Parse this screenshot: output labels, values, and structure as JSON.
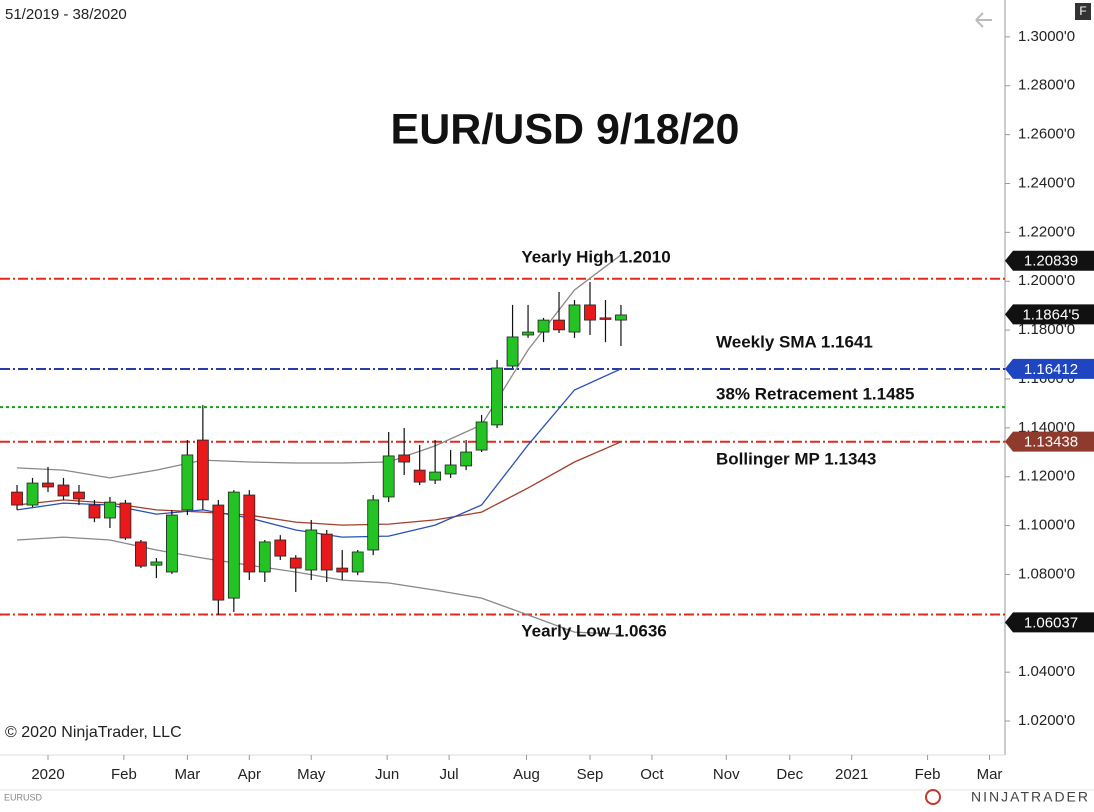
{
  "chart_data": {
    "type": "candlestick",
    "title": "EUR/USD 9/18/20",
    "subtitle": "51/2019 - 38/2020",
    "corner_tag": "F",
    "copyright": "© 2020 NinjaTrader, LLC",
    "symbol": "EURUSD",
    "logo": "NINJATRADER",
    "up_color": "#22c322",
    "down_color": "#e8191b",
    "x": [
      0,
      1,
      2,
      3,
      4,
      5,
      6,
      7,
      8,
      9,
      10,
      11,
      12,
      13,
      14,
      15,
      16,
      17,
      18,
      19,
      20,
      21,
      22,
      23,
      24,
      25,
      26,
      27,
      28,
      29,
      30,
      31,
      32,
      33,
      34,
      35,
      36,
      37,
      38,
      39
    ],
    "open": [
      1.1137,
      1.1084,
      1.1174,
      1.1166,
      1.1137,
      1.1084,
      1.1031,
      1.1092,
      1.0933,
      1.0838,
      1.081,
      1.1064,
      1.135,
      1.1084,
      1.0703,
      1.1125,
      1.081,
      1.0941,
      1.0867,
      1.0818,
      1.0965,
      1.0826,
      1.081,
      1.09,
      1.1117,
      1.1289,
      1.1227,
      1.1186,
      1.1211,
      1.1244,
      1.1309,
      1.1412,
      1.1653,
      1.178,
      1.1792,
      1.1841,
      1.1792,
      1.1903,
      1.185,
      1.1841
    ],
    "high": [
      1.1166,
      1.1195,
      1.124,
      1.1195,
      1.1166,
      1.1105,
      1.1117,
      1.1105,
      1.0941,
      1.0867,
      1.1064,
      1.135,
      1.1493,
      1.1105,
      1.1145,
      1.1145,
      1.0941,
      1.0961,
      1.0879,
      1.1023,
      1.0982,
      1.09,
      1.09,
      1.1125,
      1.1383,
      1.1399,
      1.133,
      1.135,
      1.1309,
      1.135,
      1.1453,
      1.1678,
      1.1903,
      1.1903,
      1.185,
      1.1956,
      1.1923,
      1.1997,
      1.1923,
      1.1903
    ],
    "low": [
      1.1064,
      1.1076,
      1.1137,
      1.1105,
      1.1084,
      1.1014,
      1.099,
      1.0941,
      1.0826,
      1.0785,
      1.0802,
      1.1043,
      1.1064,
      1.0634,
      1.0646,
      1.0777,
      1.0769,
      1.0859,
      1.0728,
      1.0777,
      1.0769,
      1.0777,
      1.0797,
      1.0879,
      1.1096,
      1.1207,
      1.1166,
      1.117,
      1.1195,
      1.1227,
      1.1301,
      1.1399,
      1.1645,
      1.1768,
      1.1751,
      1.1788,
      1.1768,
      1.178,
      1.1751,
      1.1735
    ],
    "close": [
      1.1084,
      1.1174,
      1.1158,
      1.1121,
      1.1109,
      1.1031,
      1.1096,
      1.0949,
      1.0834,
      1.0851,
      1.1043,
      1.1289,
      1.1105,
      1.0695,
      1.1137,
      1.081,
      1.0933,
      1.0875,
      1.0826,
      1.0982,
      1.0818,
      1.081,
      1.0892,
      1.1105,
      1.1285,
      1.126,
      1.1178,
      1.1219,
      1.1248,
      1.1301,
      1.1424,
      1.1645,
      1.1772,
      1.1792,
      1.1841,
      1.1801,
      1.1903,
      1.1841,
      1.1846,
      1.1862
    ],
    "overlays": [
      {
        "color": "#888888",
        "x": [
          0,
          3,
          6,
          9,
          12,
          15,
          18,
          21,
          24,
          27,
          30,
          33,
          36,
          39
        ],
        "values": [
          1.1236,
          1.1227,
          1.1195,
          1.1227,
          1.1268,
          1.126,
          1.1256,
          1.1256,
          1.126,
          1.1326,
          1.1412,
          1.1719,
          1.1964,
          1.2108
        ]
      },
      {
        "color": "#888888",
        "x": [
          0,
          3,
          6,
          9,
          12,
          15,
          18,
          21,
          24,
          27,
          30,
          33,
          36,
          39
        ],
        "values": [
          1.0941,
          1.0953,
          1.0941,
          1.09,
          1.0867,
          1.0838,
          1.081,
          1.0777,
          1.0765,
          1.0736,
          1.0703,
          1.0634,
          1.0564,
          1.0556
        ]
      },
      {
        "color": "#a0402a",
        "x": [
          0,
          3,
          6,
          9,
          12,
          15,
          18,
          21,
          24,
          27,
          30,
          33,
          36,
          39
        ],
        "values": [
          1.1084,
          1.1105,
          1.1092,
          1.1064,
          1.1055,
          1.1043,
          1.1014,
          1.1002,
          1.1006,
          1.1023,
          1.1055,
          1.1154,
          1.126,
          1.1343
        ]
      },
      {
        "color": "#2850b8",
        "x": [
          0,
          3,
          6,
          9,
          12,
          15,
          18,
          21,
          24,
          27,
          30,
          33,
          36,
          39
        ],
        "values": [
          1.1064,
          1.1092,
          1.1084,
          1.1047,
          1.1064,
          1.1031,
          1.0982,
          1.0953,
          1.0957,
          1.1002,
          1.1084,
          1.133,
          1.1555,
          1.1641
        ]
      }
    ],
    "levels": [
      {
        "label": "Yearly High 1.2010",
        "value": 1.201,
        "color": "#e02a1e",
        "style": "dashdot"
      },
      {
        "label": "Weekly SMA 1.1641",
        "value": 1.1641,
        "color": "#2a3aa8",
        "style": "dashdot"
      },
      {
        "label": "38% Retracement 1.1485",
        "value": 1.1485,
        "color": "#1e9a1e",
        "style": "dotted"
      },
      {
        "label": "Bollinger MP 1.1343",
        "value": 1.1343,
        "color": "#e02a1e",
        "style": "dashdot"
      },
      {
        "label": "Yearly Low 1.0636",
        "value": 1.0636,
        "color": "#e02a1e",
        "style": "dashdot"
      }
    ],
    "price_markers": [
      {
        "label": "1.20839",
        "value": 1.20839,
        "color": "#111111"
      },
      {
        "label": "1.1864'5",
        "value": 1.18645,
        "color": "#111111"
      },
      {
        "label": "1.16412",
        "value": 1.16412,
        "color": "#1f46c0"
      },
      {
        "label": "1.13438",
        "value": 1.13438,
        "color": "#8e3a2c"
      },
      {
        "label": "1.06037",
        "value": 1.06037,
        "color": "#111111"
      }
    ],
    "ylim": [
      1.0061,
      1.3151
    ],
    "yticks": [
      {
        "value": 1.3,
        "label": "1.3000'0"
      },
      {
        "value": 1.28,
        "label": "1.2800'0"
      },
      {
        "value": 1.26,
        "label": "1.2600'0"
      },
      {
        "value": 1.24,
        "label": "1.2400'0"
      },
      {
        "value": 1.22,
        "label": "1.2200'0"
      },
      {
        "value": 1.2,
        "label": "1.2000'0"
      },
      {
        "value": 1.18,
        "label": "1.1800'0"
      },
      {
        "value": 1.16,
        "label": "1.1600'0"
      },
      {
        "value": 1.14,
        "label": "1.1400'0"
      },
      {
        "value": 1.12,
        "label": "1.1200'0"
      },
      {
        "value": 1.1,
        "label": "1.1000'0"
      },
      {
        "value": 1.08,
        "label": "1.0800'0"
      },
      {
        "value": 1.06,
        "label": "1.0600'0"
      },
      {
        "value": 1.04,
        "label": "1.0400'0"
      },
      {
        "value": 1.02,
        "label": "1.0200'0"
      }
    ],
    "xlim": [
      -1.1,
      63.8
    ],
    "xticks": [
      {
        "value": 2.0,
        "label": "2020"
      },
      {
        "value": 6.9,
        "label": "Feb"
      },
      {
        "value": 11.0,
        "label": "Mar"
      },
      {
        "value": 15.0,
        "label": "Apr"
      },
      {
        "value": 19.0,
        "label": "May"
      },
      {
        "value": 23.9,
        "label": "Jun"
      },
      {
        "value": 27.9,
        "label": "Jul"
      },
      {
        "value": 32.9,
        "label": "Aug"
      },
      {
        "value": 37.0,
        "label": "Sep"
      },
      {
        "value": 41.0,
        "label": "Oct"
      },
      {
        "value": 45.8,
        "label": "Nov"
      },
      {
        "value": 49.9,
        "label": "Dec"
      },
      {
        "value": 53.9,
        "label": "2021"
      },
      {
        "value": 58.8,
        "label": "Feb"
      },
      {
        "value": 62.8,
        "label": "Mar"
      }
    ]
  }
}
